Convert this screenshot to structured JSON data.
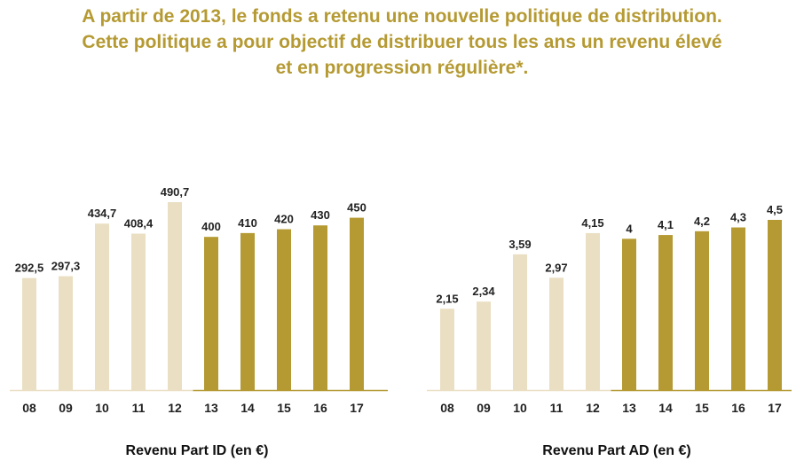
{
  "headline": {
    "line1": "A partir de 2013, le fonds a retenu une nouvelle politique de distribution.",
    "line2": "Cette politique a pour objectif de distribuer tous les ans un revenu élevé",
    "line3": "et en progression régulière*."
  },
  "colors": {
    "light_bar": "#eadfc3",
    "dark_bar": "#b59a33",
    "headline": "#b59a33"
  },
  "chart_data": [
    {
      "type": "bar",
      "title": "Revenu Part ID (en €)",
      "categories": [
        "08",
        "09",
        "10",
        "11",
        "12",
        "13",
        "14",
        "15",
        "16",
        "17"
      ],
      "values": [
        292.5,
        297.3,
        434.7,
        408.4,
        490.7,
        400,
        410,
        420,
        430,
        450
      ],
      "labels": [
        "292,5",
        "297,3",
        "434,7",
        "408,4",
        "490,7",
        "400",
        "410",
        "420",
        "430",
        "450"
      ],
      "ylim": [
        0,
        490.7
      ],
      "grid": false
    },
    {
      "type": "bar",
      "title": "Revenu Part AD (en €)",
      "categories": [
        "08",
        "09",
        "10",
        "11",
        "12",
        "13",
        "14",
        "15",
        "16",
        "17"
      ],
      "values": [
        2.15,
        2.34,
        3.59,
        2.97,
        4.15,
        4,
        4.1,
        4.2,
        4.3,
        4.5
      ],
      "labels": [
        "2,15",
        "2,34",
        "3,59",
        "2,97",
        "4,15",
        "4",
        "4,1",
        "4,2",
        "4,3",
        "4,5"
      ],
      "ylim": [
        0,
        4.5
      ],
      "grid": false
    }
  ]
}
